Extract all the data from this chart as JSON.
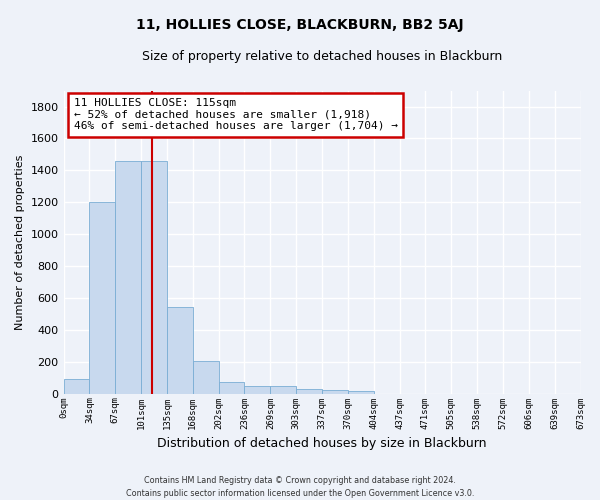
{
  "title": "11, HOLLIES CLOSE, BLACKBURN, BB2 5AJ",
  "subtitle": "Size of property relative to detached houses in Blackburn",
  "xlabel": "Distribution of detached houses by size in Blackburn",
  "ylabel": "Number of detached properties",
  "bar_color": "#c8d9ee",
  "bar_edge_color": "#7aadd4",
  "background_color": "#eef2f9",
  "plot_bg_color": "#eef2f9",
  "grid_color": "#ffffff",
  "bar_values": [
    90,
    1200,
    1460,
    1460,
    540,
    205,
    70,
    50,
    45,
    30,
    20,
    15,
    0,
    0,
    0,
    0,
    0,
    0,
    0,
    0
  ],
  "bin_labels": [
    "0sqm",
    "34sqm",
    "67sqm",
    "101sqm",
    "135sqm",
    "168sqm",
    "202sqm",
    "236sqm",
    "269sqm",
    "303sqm",
    "337sqm",
    "370sqm",
    "404sqm",
    "437sqm",
    "471sqm",
    "505sqm",
    "538sqm",
    "572sqm",
    "606sqm",
    "639sqm",
    "673sqm"
  ],
  "annotation_text": "11 HOLLIES CLOSE: 115sqm\n← 52% of detached houses are smaller (1,918)\n46% of semi-detached houses are larger (1,704) →",
  "annotation_box_color": "#ffffff",
  "annotation_border_color": "#cc0000",
  "vline_color": "#cc0000",
  "vline_x": 3.41,
  "footer_text": "Contains HM Land Registry data © Crown copyright and database right 2024.\nContains public sector information licensed under the Open Government Licence v3.0.",
  "ylim": [
    0,
    1900
  ],
  "yticks": [
    0,
    200,
    400,
    600,
    800,
    1000,
    1200,
    1400,
    1600,
    1800
  ],
  "title_fontsize": 10,
  "subtitle_fontsize": 9,
  "ylabel_fontsize": 8,
  "xlabel_fontsize": 9
}
